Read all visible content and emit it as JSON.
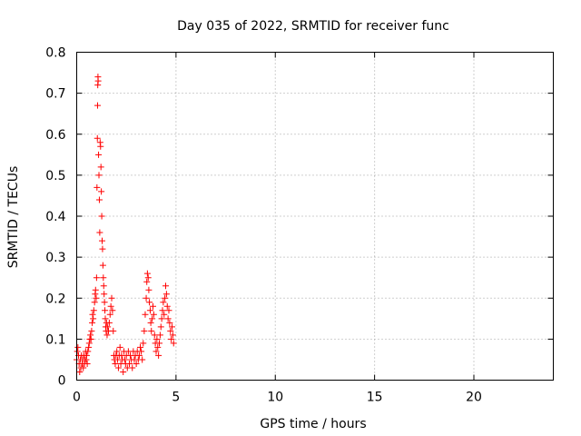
{
  "chart_data": {
    "type": "scatter",
    "title": "Day 035 of 2022, SRMTID for receiver func",
    "xlabel": "GPS time / hours",
    "ylabel": "SRMTID / TECUs",
    "xlim": [
      0,
      24
    ],
    "ylim": [
      0,
      0.8
    ],
    "x_ticks": [
      0,
      5,
      10,
      15,
      20
    ],
    "y_ticks": [
      0,
      0.1,
      0.2,
      0.3,
      0.4,
      0.5,
      0.6,
      0.7,
      0.8
    ],
    "x_tick_labels": [
      "0",
      "5",
      "10",
      "15",
      "20"
    ],
    "y_tick_labels": [
      "0",
      "0.1",
      "0.2",
      "0.3",
      "0.4",
      "0.5",
      "0.6",
      "0.7",
      "0.8"
    ],
    "grid": true,
    "marker": "+",
    "series": [
      {
        "name": "SRMTID",
        "color": "#ff0000",
        "points": [
          [
            0.0,
            0.05
          ],
          [
            0.03,
            0.07
          ],
          [
            0.06,
            0.08
          ],
          [
            0.09,
            0.06
          ],
          [
            0.12,
            0.04
          ],
          [
            0.15,
            0.02
          ],
          [
            0.18,
            0.05
          ],
          [
            0.21,
            0.03
          ],
          [
            0.24,
            0.06
          ],
          [
            0.27,
            0.04
          ],
          [
            0.3,
            0.05
          ],
          [
            0.33,
            0.03
          ],
          [
            0.36,
            0.06
          ],
          [
            0.39,
            0.04
          ],
          [
            0.42,
            0.05
          ],
          [
            0.45,
            0.07
          ],
          [
            0.48,
            0.05
          ],
          [
            0.5,
            0.06
          ],
          [
            0.53,
            0.04
          ],
          [
            0.56,
            0.07
          ],
          [
            0.6,
            0.08
          ],
          [
            0.63,
            0.09
          ],
          [
            0.66,
            0.1
          ],
          [
            0.69,
            0.11
          ],
          [
            0.72,
            0.1
          ],
          [
            0.75,
            0.12
          ],
          [
            0.78,
            0.14
          ],
          [
            0.8,
            0.16
          ],
          [
            0.83,
            0.15
          ],
          [
            0.86,
            0.17
          ],
          [
            0.9,
            0.19
          ],
          [
            0.93,
            0.21
          ],
          [
            0.95,
            0.22
          ],
          [
            0.98,
            0.2
          ],
          [
            1.0,
            0.25
          ],
          [
            1.02,
            0.47
          ],
          [
            1.04,
            0.59
          ],
          [
            1.05,
            0.67
          ],
          [
            1.06,
            0.72
          ],
          [
            1.07,
            0.74
          ],
          [
            1.08,
            0.73
          ],
          [
            1.1,
            0.55
          ],
          [
            1.12,
            0.5
          ],
          [
            1.14,
            0.44
          ],
          [
            1.16,
            0.36
          ],
          [
            1.18,
            0.58
          ],
          [
            1.2,
            0.57
          ],
          [
            1.22,
            0.52
          ],
          [
            1.24,
            0.46
          ],
          [
            1.26,
            0.4
          ],
          [
            1.28,
            0.34
          ],
          [
            1.3,
            0.32
          ],
          [
            1.32,
            0.28
          ],
          [
            1.34,
            0.25
          ],
          [
            1.36,
            0.23
          ],
          [
            1.38,
            0.21
          ],
          [
            1.4,
            0.19
          ],
          [
            1.42,
            0.17
          ],
          [
            1.44,
            0.15
          ],
          [
            1.46,
            0.13
          ],
          [
            1.48,
            0.12
          ],
          [
            1.5,
            0.14
          ],
          [
            1.53,
            0.11
          ],
          [
            1.56,
            0.13
          ],
          [
            1.6,
            0.12
          ],
          [
            1.64,
            0.14
          ],
          [
            1.68,
            0.16
          ],
          [
            1.72,
            0.18
          ],
          [
            1.76,
            0.2
          ],
          [
            1.8,
            0.17
          ],
          [
            1.84,
            0.12
          ],
          [
            1.87,
            0.06
          ],
          [
            1.9,
            0.05
          ],
          [
            1.94,
            0.04
          ],
          [
            1.98,
            0.06
          ],
          [
            2.02,
            0.07
          ],
          [
            2.06,
            0.05
          ],
          [
            2.1,
            0.03
          ],
          [
            2.14,
            0.06
          ],
          [
            2.18,
            0.08
          ],
          [
            2.22,
            0.04
          ],
          [
            2.26,
            0.06
          ],
          [
            2.3,
            0.05
          ],
          [
            2.34,
            0.02
          ],
          [
            2.38,
            0.07
          ],
          [
            2.42,
            0.05
          ],
          [
            2.46,
            0.04
          ],
          [
            2.5,
            0.06
          ],
          [
            2.55,
            0.03
          ],
          [
            2.6,
            0.07
          ],
          [
            2.65,
            0.04
          ],
          [
            2.7,
            0.06
          ],
          [
            2.75,
            0.05
          ],
          [
            2.8,
            0.03
          ],
          [
            2.85,
            0.07
          ],
          [
            2.9,
            0.05
          ],
          [
            2.95,
            0.06
          ],
          [
            3.0,
            0.04
          ],
          [
            3.05,
            0.07
          ],
          [
            3.1,
            0.05
          ],
          [
            3.15,
            0.06
          ],
          [
            3.2,
            0.08
          ],
          [
            3.25,
            0.07
          ],
          [
            3.3,
            0.05
          ],
          [
            3.35,
            0.09
          ],
          [
            3.4,
            0.12
          ],
          [
            3.45,
            0.16
          ],
          [
            3.5,
            0.2
          ],
          [
            3.53,
            0.24
          ],
          [
            3.56,
            0.26
          ],
          [
            3.6,
            0.25
          ],
          [
            3.63,
            0.22
          ],
          [
            3.66,
            0.19
          ],
          [
            3.7,
            0.17
          ],
          [
            3.73,
            0.14
          ],
          [
            3.76,
            0.12
          ],
          [
            3.8,
            0.15
          ],
          [
            3.84,
            0.18
          ],
          [
            3.88,
            0.16
          ],
          [
            3.92,
            0.11
          ],
          [
            3.96,
            0.09
          ],
          [
            4.0,
            0.07
          ],
          [
            4.04,
            0.1
          ],
          [
            4.08,
            0.08
          ],
          [
            4.12,
            0.06
          ],
          [
            4.16,
            0.09
          ],
          [
            4.2,
            0.11
          ],
          [
            4.24,
            0.13
          ],
          [
            4.28,
            0.15
          ],
          [
            4.32,
            0.17
          ],
          [
            4.36,
            0.19
          ],
          [
            4.4,
            0.16
          ],
          [
            4.44,
            0.2
          ],
          [
            4.48,
            0.23
          ],
          [
            4.52,
            0.21
          ],
          [
            4.56,
            0.18
          ],
          [
            4.6,
            0.15
          ],
          [
            4.64,
            0.17
          ],
          [
            4.68,
            0.14
          ],
          [
            4.72,
            0.12
          ],
          [
            4.76,
            0.1
          ],
          [
            4.8,
            0.13
          ],
          [
            4.84,
            0.11
          ],
          [
            4.88,
            0.09
          ]
        ]
      }
    ]
  }
}
